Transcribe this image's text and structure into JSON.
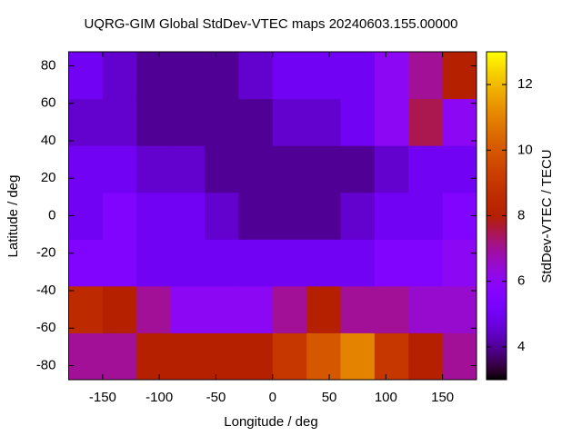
{
  "chart_data": {
    "type": "heatmap",
    "title": "UQRG-GIM Global StdDev-VTEC maps 20240603.155.00000",
    "xlabel": "Longitude / deg",
    "ylabel": "Latitude / deg",
    "colorbar_label": "StdDev-VTEC / TECU",
    "x_edges": [
      -180,
      -150,
      -120,
      -90,
      -60,
      -30,
      0,
      30,
      60,
      90,
      120,
      150,
      180
    ],
    "y_edges": [
      -87.5,
      -62.5,
      -37.5,
      -12.5,
      12.5,
      37.5,
      62.5,
      87.5
    ],
    "z": [
      [
        7,
        7,
        8,
        8,
        8,
        8,
        9,
        10,
        11,
        9,
        8,
        7
      ],
      [
        8.5,
        8,
        7,
        6,
        6,
        6,
        7,
        8,
        7,
        7,
        6.5,
        6.5
      ],
      [
        5.5,
        5.5,
        5,
        5,
        5,
        5,
        5,
        5,
        5,
        5.5,
        5.5,
        6
      ],
      [
        5,
        5.5,
        5,
        5,
        4.5,
        4,
        4,
        4,
        4.5,
        5,
        5,
        5.5
      ],
      [
        5,
        5,
        4.5,
        4.5,
        4,
        4,
        4,
        4,
        4,
        4.5,
        5,
        5
      ],
      [
        4.5,
        4.5,
        4,
        4,
        4,
        4,
        4.5,
        4.5,
        5,
        6,
        7.5,
        6
      ],
      [
        5,
        4.5,
        4,
        4,
        4,
        4.5,
        5,
        5,
        5,
        6,
        7,
        8
      ]
    ],
    "xlim": [
      -180,
      180
    ],
    "ylim": [
      -87.5,
      87.5
    ],
    "xticks": [
      -150,
      -100,
      -50,
      0,
      50,
      100,
      150
    ],
    "yticks": [
      -80,
      -60,
      -40,
      -20,
      0,
      20,
      40,
      60,
      80
    ],
    "zlim": [
      3,
      13
    ],
    "zticks": [
      4,
      6,
      8,
      10,
      12
    ]
  }
}
